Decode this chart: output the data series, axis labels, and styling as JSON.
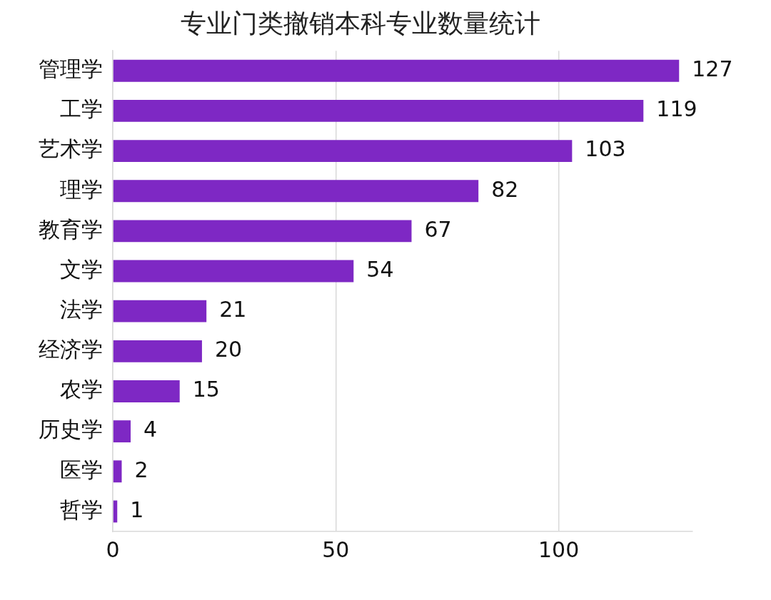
{
  "chart_data": {
    "type": "bar",
    "orientation": "horizontal",
    "title": "专业门类撤销本科专业数量统计",
    "categories": [
      "管理学",
      "工学",
      "艺术学",
      "理学",
      "教育学",
      "文学",
      "法学",
      "经济学",
      "农学",
      "历史学",
      "医学",
      "哲学"
    ],
    "values": [
      127,
      119,
      103,
      82,
      67,
      54,
      21,
      20,
      15,
      4,
      2,
      1
    ],
    "color": "#7e28c4",
    "xlim": [
      0,
      130
    ],
    "xticks": [
      0,
      50,
      100
    ],
    "grid": "x",
    "data_labels": true,
    "legend": false
  }
}
